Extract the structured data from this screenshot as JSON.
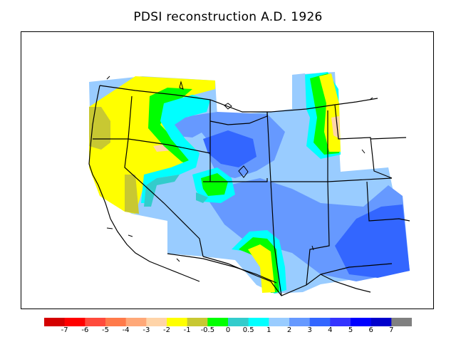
{
  "title": "PDSI reconstruction A.D. 1926",
  "legend": {
    "colors": [
      "#d40000",
      "#ff0000",
      "#ff4a3c",
      "#ff7a4a",
      "#ffa878",
      "#ffd4a8",
      "#ffff00",
      "#c8c832",
      "#00ff00",
      "#33cccc",
      "#00ffff",
      "#99ccff",
      "#6699ff",
      "#3366ff",
      "#3333ff",
      "#0000ff",
      "#0000cc",
      "#808080"
    ],
    "labels": [
      "-7",
      "-6",
      "-5",
      "-4",
      "-3",
      "-2",
      "-1",
      "-0.5",
      "0",
      "0.5",
      "1",
      "2",
      "3",
      "4",
      "5",
      "6",
      "7"
    ]
  },
  "colors": {
    "outline": "#000000",
    "dry_yellow": "#ffff00",
    "olive": "#c8c832",
    "green": "#00ff00",
    "teal": "#33cccc",
    "cyan": "#00ffff",
    "light_blue": "#99ccff",
    "mid_blue": "#6699ff",
    "blue": "#3366ff",
    "peach": "#ffd4a8"
  }
}
